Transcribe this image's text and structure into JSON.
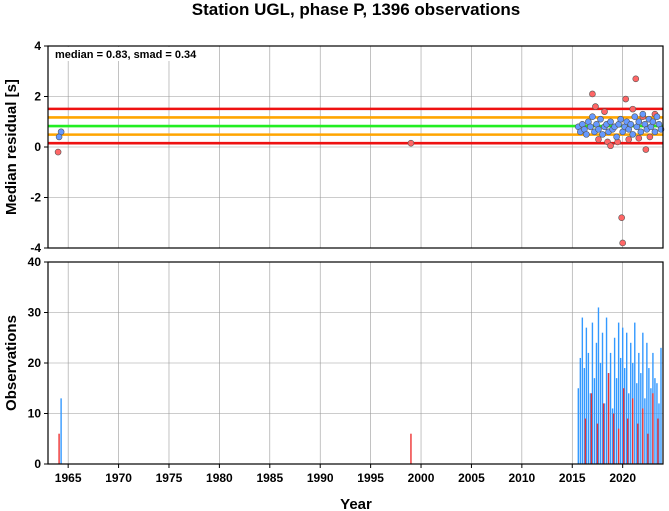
{
  "chart_data": [
    {
      "type": "scatter",
      "title": "Station UGL, phase P, 1396 observations",
      "ylabel": "Median residual [s]",
      "xlim": [
        1963,
        2024
      ],
      "ylim": [
        -4,
        4
      ],
      "yticks": [
        4,
        2,
        0,
        -2,
        -4
      ],
      "grid": true,
      "annotation": "median = 0.83, smad = 0.34",
      "reference_lines": [
        {
          "y": 0.83,
          "color": "#22ee22"
        },
        {
          "y": 1.17,
          "color": "#ffa500"
        },
        {
          "y": 0.49,
          "color": "#ffa500"
        },
        {
          "y": 1.51,
          "color": "#ee1111"
        },
        {
          "y": 0.15,
          "color": "#ee1111"
        }
      ],
      "series": [
        {
          "color": "#6699ff",
          "points": [
            [
              1964.3,
              0.6
            ],
            [
              1964.1,
              0.4
            ],
            [
              2015.6,
              0.8
            ],
            [
              2015.8,
              0.6
            ],
            [
              2016.0,
              0.9
            ],
            [
              2016.2,
              0.7
            ],
            [
              2016.4,
              0.5
            ],
            [
              2016.6,
              1.0
            ],
            [
              2016.8,
              0.8
            ],
            [
              2017.0,
              1.2
            ],
            [
              2017.2,
              0.6
            ],
            [
              2017.4,
              0.9
            ],
            [
              2017.6,
              0.7
            ],
            [
              2017.8,
              1.1
            ],
            [
              2018.0,
              0.5
            ],
            [
              2018.2,
              0.8
            ],
            [
              2018.4,
              0.9
            ],
            [
              2018.6,
              0.6
            ],
            [
              2018.8,
              1.0
            ],
            [
              2019.0,
              0.7
            ],
            [
              2019.2,
              0.8
            ],
            [
              2019.4,
              0.4
            ],
            [
              2019.6,
              0.9
            ],
            [
              2019.8,
              1.1
            ],
            [
              2020.0,
              0.6
            ],
            [
              2020.2,
              0.8
            ],
            [
              2020.4,
              1.0
            ],
            [
              2020.6,
              0.7
            ],
            [
              2020.8,
              0.9
            ],
            [
              2021.0,
              0.5
            ],
            [
              2021.2,
              1.2
            ],
            [
              2021.4,
              0.8
            ],
            [
              2021.6,
              1.0
            ],
            [
              2021.8,
              0.6
            ],
            [
              2022.0,
              1.3
            ],
            [
              2022.2,
              0.9
            ],
            [
              2022.4,
              0.7
            ],
            [
              2022.6,
              1.1
            ],
            [
              2022.8,
              0.8
            ],
            [
              2023.0,
              1.0
            ],
            [
              2023.2,
              0.6
            ],
            [
              2023.4,
              1.2
            ],
            [
              2023.6,
              0.9
            ],
            [
              2023.8,
              0.7
            ]
          ]
        },
        {
          "color": "#ff6666",
          "points": [
            [
              1964.0,
              -0.2
            ],
            [
              1999.0,
              0.15
            ],
            [
              2017.0,
              2.1
            ],
            [
              2017.3,
              1.6
            ],
            [
              2017.6,
              0.3
            ],
            [
              2018.2,
              1.4
            ],
            [
              2018.5,
              0.2
            ],
            [
              2018.8,
              0.05
            ],
            [
              2019.5,
              0.2
            ],
            [
              2019.9,
              -2.8
            ],
            [
              2020.0,
              -3.8
            ],
            [
              2020.3,
              1.9
            ],
            [
              2020.6,
              0.3
            ],
            [
              2021.0,
              1.5
            ],
            [
              2021.3,
              2.7
            ],
            [
              2021.6,
              0.35
            ],
            [
              2022.0,
              1.2
            ],
            [
              2022.3,
              -0.1
            ],
            [
              2022.7,
              0.4
            ],
            [
              2023.2,
              1.3
            ]
          ]
        }
      ]
    },
    {
      "type": "bar",
      "xlabel": "Year",
      "ylabel": "Observations",
      "xlim": [
        1963,
        2024
      ],
      "ylim": [
        0,
        40
      ],
      "xticks": [
        1965,
        1970,
        1975,
        1980,
        1985,
        1990,
        1995,
        2000,
        2005,
        2010,
        2015,
        2020
      ],
      "yticks": [
        40,
        30,
        20,
        10,
        0
      ],
      "grid": true,
      "series": [
        {
          "color": "#3399ff",
          "x": [
            1964.3,
            2015.6,
            2015.8,
            2016.0,
            2016.2,
            2016.4,
            2016.6,
            2016.8,
            2017.0,
            2017.2,
            2017.4,
            2017.6,
            2017.8,
            2018.0,
            2018.2,
            2018.4,
            2018.6,
            2018.8,
            2019.0,
            2019.2,
            2019.4,
            2019.6,
            2019.8,
            2020.0,
            2020.2,
            2020.4,
            2020.6,
            2020.8,
            2021.0,
            2021.2,
            2021.4,
            2021.6,
            2021.8,
            2022.0,
            2022.2,
            2022.4,
            2022.6,
            2022.8,
            2023.0,
            2023.2,
            2023.4,
            2023.6,
            2023.8
          ],
          "values": [
            13,
            15,
            21,
            29,
            19,
            27,
            22,
            14,
            28,
            17,
            24,
            31,
            20,
            26,
            12,
            29,
            18,
            22,
            11,
            25,
            17,
            28,
            21,
            27,
            19,
            26,
            14,
            24,
            20,
            28,
            16,
            22,
            18,
            26,
            13,
            24,
            19,
            15,
            22,
            17,
            16,
            12,
            23
          ]
        },
        {
          "color": "#ee3333",
          "x": [
            1964.1,
            1999.0,
            2016.3,
            2016.9,
            2017.5,
            2018.1,
            2018.6,
            2019.1,
            2019.6,
            2020.1,
            2020.5,
            2021.0,
            2021.5,
            2022.0,
            2022.5,
            2023.0,
            2023.5
          ],
          "values": [
            6,
            6,
            9,
            14,
            8,
            12,
            18,
            10,
            7,
            15,
            9,
            13,
            8,
            11,
            6,
            14,
            9
          ]
        }
      ]
    }
  ]
}
